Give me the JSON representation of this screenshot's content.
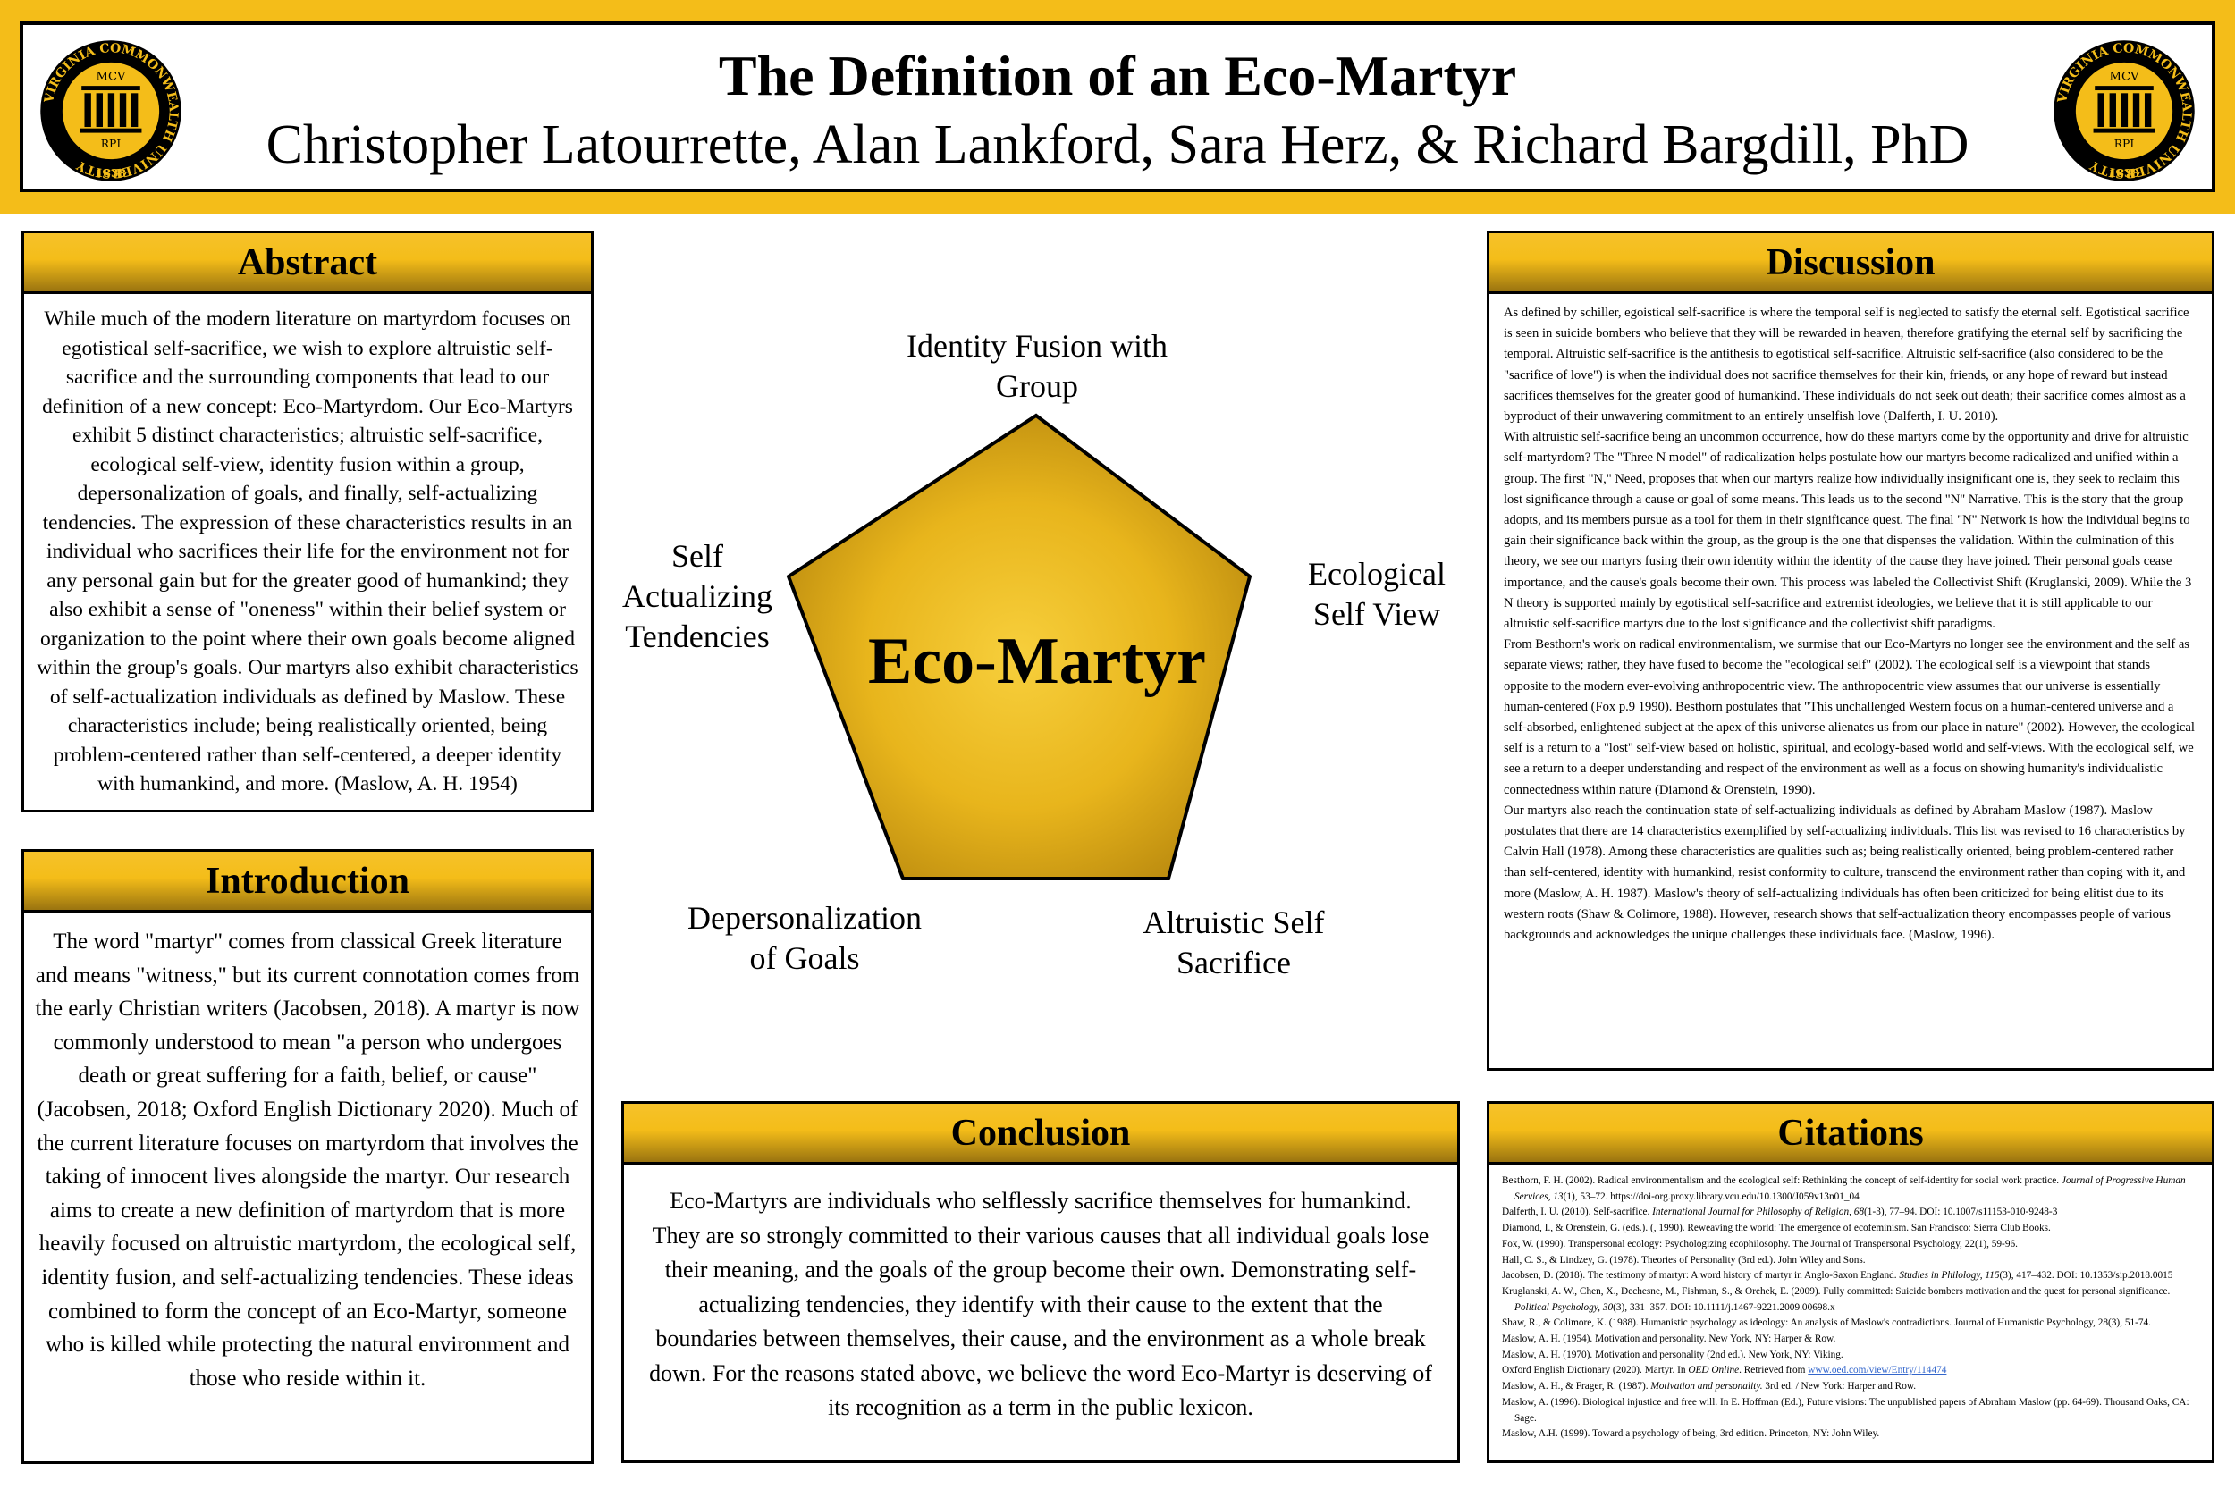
{
  "header": {
    "title": "The Definition of an Eco-Martyr",
    "authors": "Christopher Latourrette, Alan Lankford, Sara Herz, & Richard Bargdill, PhD",
    "logo": {
      "ring_text": "VIRGINIA COMMONWEALTH UNIVERSITY",
      "top_text": "MCV",
      "bottom_text": "RPI",
      "year": "1838",
      "colors": {
        "gold": "#f4bd19",
        "black": "#000000"
      }
    }
  },
  "abstract": {
    "heading": "Abstract",
    "text": "While much of the modern literature on martyrdom focuses on egotistical self-sacrifice, we wish to explore altruistic self-sacrifice and the surrounding components that lead to our definition of a new concept: Eco-Martyrdom. Our Eco-Martyrs exhibit 5 distinct characteristics; altruistic self-sacrifice, ecological self-view, identity fusion within a group, depersonalization of goals, and finally, self-actualizing tendencies. The expression of these characteristics results in an individual who sacrifices their life for the environment not for any personal gain but for the greater good of humankind; they also exhibit a sense of \"oneness\" within their belief system or organization to the point where their own goals become aligned within the group's goals. Our martyrs also exhibit characteristics of self-actualization individuals as defined by Maslow. These characteristics include; being realistically oriented, being problem-centered rather than self-centered, a deeper identity with humankind, and more. (Maslow, A. H. 1954)"
  },
  "introduction": {
    "heading": "Introduction",
    "text": "The word \"martyr\" comes from classical Greek literature and means \"witness,\" but its current connotation comes from the early Christian writers (Jacobsen, 2018). A martyr is now commonly understood to mean \"a person who undergoes death or great suffering for a faith, belief, or cause\" (Jacobsen, 2018; Oxford English Dictionary 2020). Much of the current literature focuses on martyrdom that involves the taking of innocent lives alongside the martyr. Our research aims to create a new definition of martyrdom that is more heavily focused on altruistic martyrdom, the ecological self, identity fusion, and self-actualizing tendencies. These ideas combined to form the concept of an Eco-Martyr, someone who is killed while protecting the natural environment and those who reside within it."
  },
  "diagram": {
    "center": "Eco-Martyr",
    "fill_color": "#e8b51c",
    "labels": {
      "top": [
        "Identity Fusion with",
        "Group"
      ],
      "right": [
        "Ecological",
        "Self View"
      ],
      "bottom_right": [
        "Altruistic Self",
        "Sacrifice"
      ],
      "bottom_left": [
        "Depersonalization",
        "of Goals"
      ],
      "left": [
        "Self",
        "Actualizing",
        "Tendencies"
      ]
    }
  },
  "conclusion": {
    "heading": "Conclusion",
    "text": "Eco-Martyrs are individuals who selflessly sacrifice themselves for humankind. They are so strongly committed to their various causes that all individual goals lose their meaning, and the goals of the group become their own. Demonstrating self-actualizing tendencies, they identify with their cause to the extent that the boundaries between themselves, their cause, and the environment as a whole break down. For the reasons stated above, we believe the word Eco-Martyr is deserving of its recognition as a term in the public lexicon."
  },
  "discussion": {
    "heading": "Discussion",
    "paragraphs": [
      "As defined by schiller, egoistical self-sacrifice is where the temporal self is neglected to satisfy the eternal self. Egotistical sacrifice is seen in suicide bombers who believe that they will be rewarded in heaven, therefore gratifying the eternal self by sacrificing the temporal. Altruistic self-sacrifice is the antithesis to egotistical self-sacrifice. Altruistic self-sacrifice (also considered to be the \"sacrifice of love\") is when the individual does not sacrifice themselves for their kin, friends, or any hope of reward but instead sacrifices themselves for the greater good of humankind. These individuals do not seek out death; their sacrifice comes almost as a byproduct of their unwavering commitment to an entirely unselfish love (Dalferth, I. U. 2010).",
      "With altruistic self-sacrifice being an uncommon occurrence, how do these martyrs come by the opportunity and drive for altruistic self-martyrdom? The \"Three N model\" of radicalization helps postulate how our martyrs become radicalized and unified within a group. The first \"N,\" Need, proposes that when our martyrs realize how individually insignificant one is, they seek to reclaim this lost significance through a cause or goal of some means. This leads us to the second \"N\" Narrative. This is the story that the group adopts, and its members pursue as a tool for them in their significance quest. The final \"N\" Network is how the individual begins to gain their significance back within the group, as the group is the one that dispenses the validation. Within the culmination of this theory, we see our martyrs fusing their own identity within the identity of the cause they have joined. Their personal goals cease importance, and the cause's goals become their own. This process was labeled the Collectivist Shift (Kruglanski, 2009). While the 3 N theory is supported mainly by egotistical self-sacrifice and extremist ideologies, we believe that it is still applicable to our altruistic self-sacrifice martyrs due to the lost significance and the collectivist shift paradigms.",
      "From Besthorn's work on radical environmentalism, we surmise that our Eco-Martyrs no longer see the environment and the self as separate views; rather, they have fused to become the \"ecological self\" (2002). The ecological self is a viewpoint that stands opposite to the modern ever-evolving anthropocentric view. The anthropocentric view assumes that our universe is essentially human-centered (Fox p.9 1990). Besthorn postulates that \"This unchallenged Western focus on a human-centered universe and a self-absorbed, enlightened subject at the apex of this universe alienates us from our place in nature\" (2002). However, the ecological self is a return to a \"lost\" self-view based on holistic, spiritual, and ecology-based world and self-views. With the ecological self, we see a return to a deeper understanding and respect of the environment as well as a focus on showing humanity's individualistic connectedness within nature (Diamond & Orenstein, 1990).",
      "Our martyrs also reach the continuation state of self-actualizing individuals as defined by Abraham Maslow (1987). Maslow postulates that there are 14 characteristics exemplified by self-actualizing individuals. This list was revised to 16 characteristics by Calvin Hall (1978). Among these characteristics are qualities such as; being realistically oriented, being problem-centered rather than self-centered, identity with humankind, resist conformity to culture, transcend the environment rather than coping with it, and more (Maslow, A. H. 1987). Maslow's theory of self-actualizing individuals has often been criticized for being elitist due to its western roots (Shaw & Colimore, 1988). However, research shows that self-actualization theory encompasses people of various backgrounds and acknowledges the unique challenges these individuals face. (Maslow, 1996)."
    ]
  },
  "citations": {
    "heading": "Citations",
    "entries": [
      {
        "pre": "Besthorn, F. H. (2002). Radical environmentalism and the ecological self: Rethinking the concept of self-identity for social work practice. ",
        "em": "Journal of Progressive Human Services, 13",
        "post": "(1), 53–72. https://doi-org.proxy.library.vcu.edu/10.1300/J059v13n01_04"
      },
      {
        "pre": "Dalferth, I. U. (2010). Self-sacrifice. ",
        "em": "International Journal for Philosophy of Religion, 68",
        "post": "(1-3), 77–94. DOI: 10.1007/s11153-010-9248-3"
      },
      {
        "pre": "Diamond, I., & Orenstein, G. (eds.). (, 1990). Reweaving the world: The emergence of ecofeminism. San Francisco: Sierra Club Books.",
        "em": "",
        "post": ""
      },
      {
        "pre": "Fox, W. (1990). Transpersonal ecology: Psychologizing ecophilosophy. The Journal of Transpersonal Psychology, 22(1), 59-96.",
        "em": "",
        "post": ""
      },
      {
        "pre": "Hall, C. S., & Lindzey, G. (1978). Theories of Personality (3rd ed.). John Wiley and Sons.",
        "em": "",
        "post": ""
      },
      {
        "pre": "Jacobsen, D. (2018). The testimony of martyr: A word history of martyr in Anglo-Saxon   England. ",
        "em": "Studies in Philology, 115",
        "post": "(3), 417–432. DOI: 10.1353/sip.2018.0015"
      },
      {
        "pre": "Kruglanski, A. W., Chen, X., Dechesne, M., Fishman, S., & Orehek, E. (2009). Fully committed: Suicide bombers motivation and the quest for personal significance. ",
        "em": "Political Psychology, 30",
        "post": "(3), 331–357. DOI: 10.1111/j.1467-9221.2009.00698.x"
      },
      {
        "pre": "Shaw, R., & Colimore, K. (1988). Humanistic psychology as ideology: An analysis of Maslow's contradictions. Journal of Humanistic Psychology, 28(3), 51-74.",
        "em": "",
        "post": ""
      },
      {
        "pre": "Maslow, A. H. (1954). Motivation and personality. New York, NY: Harper & Row.",
        "em": "",
        "post": ""
      },
      {
        "pre": "Maslow, A. H. (1970). Motivation and personality (2nd ed.). New York, NY: Viking.",
        "em": "",
        "post": ""
      },
      {
        "pre": "Oxford English Dictionary (2020). Martyr. In ",
        "em": "OED Online",
        "post": ". Retrieved from ",
        "link": "www.oed.com/view/Entry/114474"
      },
      {
        "pre": "Maslow, A. H., & Frager, R. (1987). ",
        "em": "Motivation and personality.",
        "post": " 3rd ed. / New York: Harper and Row."
      },
      {
        "pre": "Maslow, A. (1996). Biological injustice and free will. In E. Hoffman (Ed.), Future visions: The unpublished papers of Abraham Maslow (pp. 64-69). Thousand Oaks, CA: Sage.",
        "em": "",
        "post": ""
      },
      {
        "pre": "Maslow, A.H. (1999). Toward a psychology of being, 3rd edition. Princeton, NY: John Wiley.",
        "em": "",
        "post": ""
      }
    ]
  }
}
